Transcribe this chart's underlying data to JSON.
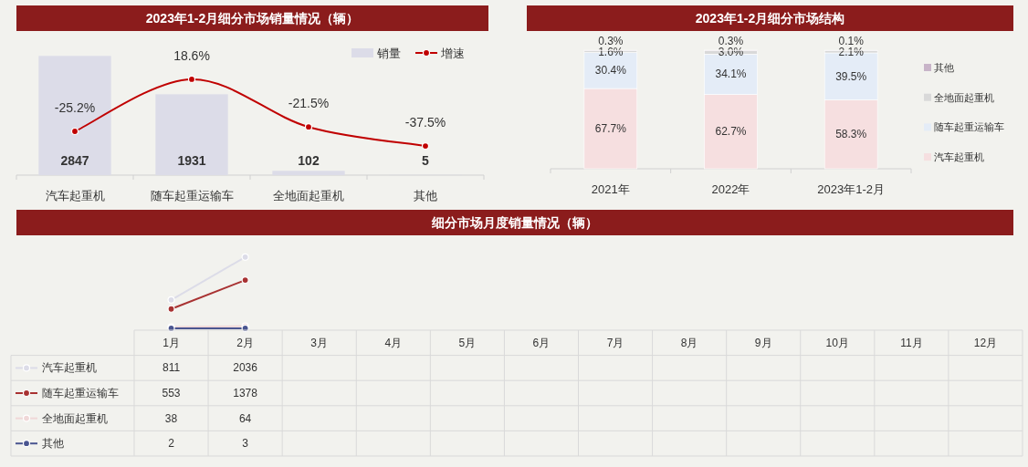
{
  "chart_data": [
    {
      "type": "bar",
      "title": "2023年1-2月细分市场销量情况（辆）",
      "categories": [
        "汽车起重机",
        "随车起重运输车",
        "全地面起重机",
        "其他"
      ],
      "legend": "top right",
      "marker": "circle",
      "series": [
        {
          "name": "销量",
          "type": "bar",
          "color": "#dcdce8",
          "values": [
            2847,
            1931,
            102,
            5
          ],
          "value_labels": [
            "2847",
            "1931",
            "102",
            "5"
          ]
        },
        {
          "name": "增速",
          "type": "line",
          "axis": "y2",
          "color": "#c00000",
          "values": [
            -25.2,
            18.6,
            -21.5,
            -37.5
          ],
          "value_labels": [
            "-25.2%",
            "18.6%",
            "-21.5%",
            "-37.5%"
          ]
        }
      ]
    },
    {
      "type": "bar",
      "title": "2023年1-2月细分市场结构",
      "categories": [
        "2021年",
        "2022年",
        "2023年1-2月"
      ],
      "stacked": true,
      "legend": "right",
      "series": [
        {
          "name": "汽车起重机",
          "color": "#f6dfe0",
          "values": [
            67.7,
            62.7,
            58.3
          ],
          "value_labels": [
            "67.7%",
            "62.7%",
            "58.3%"
          ]
        },
        {
          "name": "随车起重运输车",
          "color": "#e4ecf7",
          "values": [
            30.4,
            34.1,
            39.5
          ],
          "value_labels": [
            "30.4%",
            "34.1%",
            "39.5%"
          ]
        },
        {
          "name": "全地面起重机",
          "color": "#d9d9d9",
          "values": [
            1.6,
            3.0,
            2.1
          ],
          "value_labels": [
            "1.6%",
            "3.0%",
            "2.1%"
          ]
        },
        {
          "name": "其他",
          "color": "#c8b4c8",
          "values": [
            0.3,
            0.3,
            0.1
          ],
          "value_labels": [
            "0.3%",
            "0.3%",
            "0.1%"
          ]
        }
      ]
    },
    {
      "type": "line",
      "title": "细分市场月度销量情况（辆）",
      "categories": [
        "1月",
        "2月",
        "3月",
        "4月",
        "5月",
        "6月",
        "7月",
        "8月",
        "9月",
        "10月",
        "11月",
        "12月"
      ],
      "data_labels": true,
      "legend": "bottom",
      "marker": "circle",
      "series": [
        {
          "name": "汽车起重机",
          "color": "#dcdce8",
          "values": [
            811,
            2036,
            null,
            null,
            null,
            null,
            null,
            null,
            null,
            null,
            null,
            null
          ]
        },
        {
          "name": "随车起重运输车",
          "color": "#a83232",
          "values": [
            553,
            1378,
            null,
            null,
            null,
            null,
            null,
            null,
            null,
            null,
            null,
            null
          ]
        },
        {
          "name": "全地面起重机",
          "color": "#f0d8d8",
          "values": [
            38,
            64,
            null,
            null,
            null,
            null,
            null,
            null,
            null,
            null,
            null,
            null
          ]
        },
        {
          "name": "其他",
          "color": "#4a5590",
          "values": [
            2,
            3,
            null,
            null,
            null,
            null,
            null,
            null,
            null,
            null,
            null,
            null
          ]
        }
      ]
    }
  ]
}
